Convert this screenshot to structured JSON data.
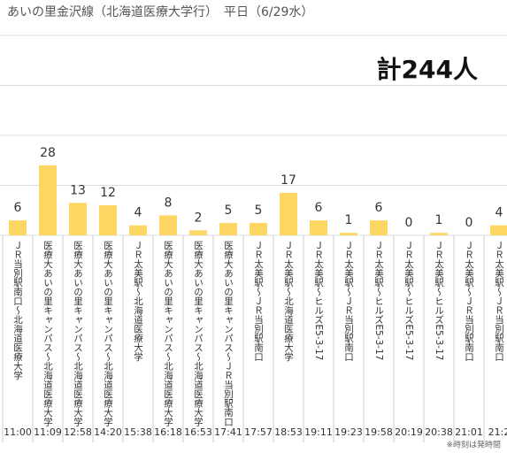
{
  "chart_data": {
    "type": "bar",
    "title": "あいの里金沢線（北海道医療大学行）　平日（6/29水）",
    "total": "計244人",
    "footnote": "※時刻は発時間",
    "categories": [
      "11:00",
      "11:09",
      "12:58",
      "14:20",
      "15:38",
      "16:18",
      "16:53",
      "17:41",
      "17:57",
      "18:53",
      "19:11",
      "19:23",
      "19:58",
      "20:19",
      "20:38",
      "21:01",
      "21:2"
    ],
    "routes": [
      "ＪＲ当別駅南口～北海道医療大学",
      "医療大あいの里キャンパス～北海道医療大学",
      "医療大あいの里キャンパス～北海道医療大学",
      "医療大あいの里キャンパス～北海道医療大学",
      "ＪＲ太美駅～北海道医療大学",
      "医療大あいの里キャンパス～北海道医療大学",
      "医療大あいの里キャンパス～北海道医療大学",
      "医療大あいの里キャンパス～ＪＲ当別駅南口",
      "ＪＲ太美駅～ＪＲ当別駅南口",
      "ＪＲ太美駅～北海道医療大学",
      "ＪＲ太美駅～ヒルズE5-3-17",
      "ＪＲ太美駅～ＪＲ当別駅南口",
      "ＪＲ太美駅～ヒルズE5-3-17",
      "ＪＲ太美駅～ヒルズE5-3-17",
      "ＪＲ太美駅～ヒルズE5-3-17",
      "ＪＲ太美駅～ＪＲ当別駅南口",
      "ＪＲ太美駅～ＪＲ当別駅南口"
    ],
    "values": [
      6,
      28,
      13,
      12,
      4,
      8,
      2,
      5,
      5,
      17,
      6,
      1,
      6,
      0,
      1,
      0,
      4
    ],
    "color": "#fdd663",
    "ylim": [
      0,
      80
    ],
    "yticks": [
      0,
      20,
      40,
      60,
      80
    ],
    "grid": true
  }
}
